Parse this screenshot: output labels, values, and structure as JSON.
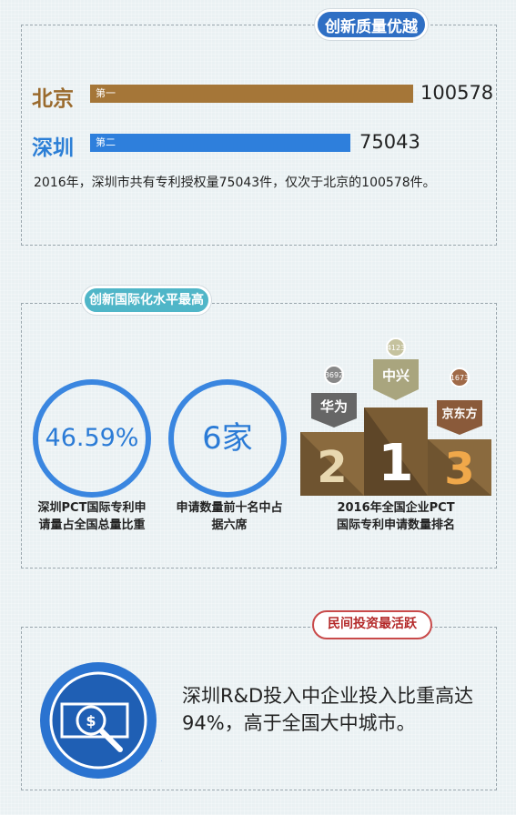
{
  "sections": {
    "innovation_quality": {
      "title": "创新质量优越",
      "rows": [
        {
          "city": "北京",
          "rank": "第一",
          "value": "100578"
        },
        {
          "city": "深圳",
          "rank": "第二",
          "value": "75043"
        }
      ],
      "description": "2016年，深圳市共有专利授权量75043件，仅次于北京的100578件。"
    },
    "internationalization": {
      "title": "创新国际化水平最高",
      "stat1": {
        "value": "46.59%",
        "caption_l1": "深圳PCT国际专利申",
        "caption_l2": "请量占全国总量比重"
      },
      "stat2": {
        "value": "6家",
        "caption_l1": "申请数量前十名中占",
        "caption_l2": "据六席"
      },
      "podium": {
        "first": {
          "place": "1",
          "company": "中兴",
          "count": "4123"
        },
        "second": {
          "place": "2",
          "company": "华为",
          "count": "3692"
        },
        "third": {
          "place": "3",
          "company": "京东方",
          "count": "1673"
        },
        "caption_l1": "2016年全国企业PCT",
        "caption_l2": "国际专利申请数量排名"
      }
    },
    "private_investment": {
      "title": "民间投资最活跃",
      "description_l1": "深圳R&D投入中企业投入比重高达",
      "description_l2": "94%，高于全国大中城市。"
    }
  },
  "colors": {
    "blue": "#2e7fdc",
    "brown": "#a57638",
    "teal": "#50b6c8",
    "red": "#c94a4a",
    "olive": "#a9a57e"
  },
  "icons": {
    "investment": "money-magnifier-icon"
  }
}
